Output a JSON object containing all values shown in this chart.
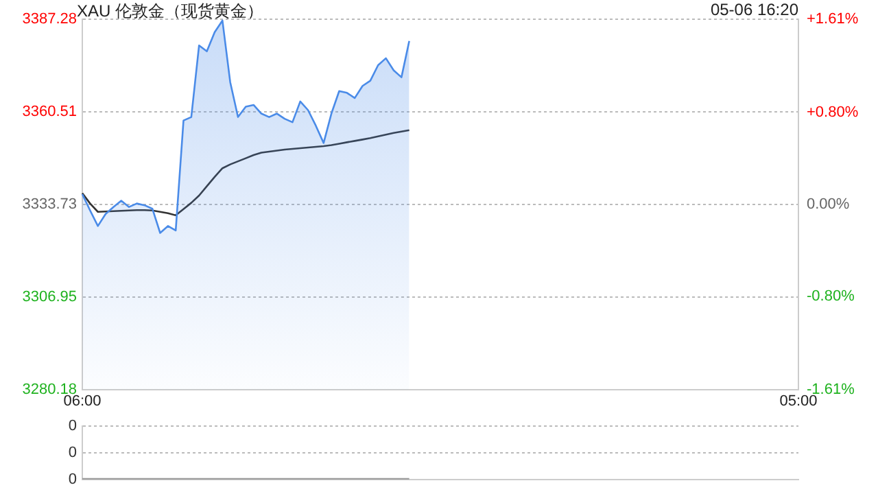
{
  "chart_data": [
    {
      "type": "area",
      "title": "XAU 伦敦金（现货黄金）",
      "annotations": [
        "05-06 16:20"
      ],
      "categories": [
        "06:00",
        null,
        null,
        null,
        null,
        null,
        null,
        null,
        null,
        null,
        null,
        null,
        null,
        null,
        null,
        null,
        null,
        null,
        null,
        null,
        null,
        null,
        null,
        null,
        null,
        null,
        null,
        null,
        null,
        null,
        null,
        null,
        null,
        null,
        null,
        null,
        null,
        null,
        null,
        null,
        null,
        null,
        null,
        null,
        null,
        null,
        null,
        null,
        null,
        null,
        null,
        null,
        null,
        null,
        null,
        null,
        null,
        null,
        null,
        null,
        null,
        null,
        null,
        null,
        null,
        null,
        null,
        null,
        null,
        null,
        null,
        null,
        null,
        null,
        null,
        null,
        null,
        null,
        null,
        null,
        null,
        null,
        null,
        null,
        null,
        null,
        null,
        null,
        null,
        null,
        null,
        null,
        "05:00"
      ],
      "ylim": [
        3280.18,
        3387.28
      ],
      "yticks": [
        3280.18,
        3306.95,
        3333.73,
        3360.51,
        3387.28
      ],
      "y2lim": [
        -1.61,
        1.61
      ],
      "y2ticks": [
        {
          "value": -1.61,
          "label": "-1.61%"
        },
        {
          "value": -0.8,
          "label": "-0.80%"
        },
        {
          "value": 0,
          "label": "0.00%"
        },
        {
          "value": 0.8,
          "label": "+0.80%"
        },
        {
          "value": 1.61,
          "label": "+1.61%"
        }
      ],
      "grid": "y",
      "legend": false,
      "marker": "none",
      "series": [
        {
          "color": "#4a8be8",
          "values": [
            3336.7,
            3332,
            3327.5,
            3331,
            3333,
            3334.8,
            3333,
            3334,
            3333.5,
            3332.5,
            3325.5,
            3327.5,
            3326.2,
            3358,
            3359,
            3379.7,
            3378,
            3383.5,
            3386.9,
            3369.1,
            3359,
            3362,
            3362.5,
            3360,
            3359,
            3360,
            3358.5,
            3357.5,
            3363.5,
            3361,
            3356.5,
            3351.5,
            3360,
            3366.5,
            3366,
            3364.5,
            3368,
            3369.5,
            3374,
            3376,
            3372.5,
            3370.5,
            3381,
            null,
            null,
            null,
            null,
            null,
            null,
            null,
            null,
            null,
            null,
            null,
            null,
            null,
            null,
            null,
            null,
            null,
            null,
            null,
            null,
            null,
            null,
            null,
            null,
            null,
            null,
            null,
            null,
            null,
            null,
            null,
            null,
            null,
            null,
            null,
            null,
            null,
            null,
            null,
            null,
            null,
            null,
            null,
            null,
            null,
            null,
            null,
            null,
            null,
            null
          ]
        },
        {
          "type": "line",
          "color": "#333333",
          "values": [
            3337,
            3334,
            3331.6,
            3331.7,
            3331.8,
            3331.9,
            3332,
            3332.1,
            3332.1,
            3332,
            3331.6,
            3331.2,
            3330.6,
            3332.4,
            3334.2,
            3336.3,
            3339,
            3341.7,
            3344.2,
            3345.3,
            3346.2,
            3347.1,
            3348,
            3348.7,
            3349,
            3349.3,
            3349.6,
            3349.8,
            3350,
            3350.2,
            3350.4,
            3350.6,
            3350.9,
            3351.3,
            3351.7,
            3352.1,
            3352.5,
            3352.9,
            3353.4,
            3353.9,
            3354.4,
            3354.8,
            3355.2,
            null,
            null,
            null,
            null,
            null,
            null,
            null,
            null,
            null,
            null,
            null,
            null,
            null,
            null,
            null,
            null,
            null,
            null,
            null,
            null,
            null,
            null,
            null,
            null,
            null,
            null,
            null,
            null,
            null,
            null,
            null,
            null,
            null,
            null,
            null,
            null,
            null,
            null,
            null,
            null,
            null,
            null,
            null,
            null,
            null,
            null,
            null,
            null,
            null,
            null
          ]
        }
      ]
    },
    {
      "type": "line",
      "categories": [
        null,
        null,
        null,
        null,
        null,
        null,
        null,
        null,
        null,
        null,
        null,
        null,
        null,
        null,
        null,
        null,
        null,
        null,
        null,
        null,
        null,
        null,
        null,
        null,
        null,
        null,
        null,
        null,
        null,
        null,
        null,
        null,
        null,
        null,
        null,
        null,
        null,
        null,
        null,
        null,
        null,
        null,
        null,
        null,
        null,
        null,
        null,
        null,
        null,
        null,
        null,
        null,
        null,
        null,
        null,
        null,
        null,
        null,
        null,
        null,
        null,
        null,
        null,
        null,
        null,
        null,
        null,
        null,
        null,
        null,
        null,
        null,
        null,
        null,
        null,
        null,
        null,
        null,
        null,
        null,
        null,
        null,
        null,
        null,
        null,
        null,
        null,
        null,
        null,
        null,
        null,
        null,
        null
      ],
      "ylim": [
        0,
        0.4
      ],
      "yticks": [
        {
          "value": 0,
          "label": "0"
        },
        {
          "value": 0.2,
          "label": "0"
        },
        {
          "value": 0.4,
          "label": "0"
        }
      ],
      "tick_labels": "y",
      "grid": "y",
      "legend": false,
      "marker": "none",
      "series": [
        {
          "color": "#999999",
          "values": [
            0,
            0,
            0,
            0,
            0,
            0,
            0,
            0,
            0,
            0,
            0,
            0,
            0,
            0,
            0,
            0,
            0,
            0,
            0,
            0,
            0,
            0,
            0,
            0,
            0,
            0,
            0,
            0,
            0,
            0,
            0,
            0,
            0,
            0,
            0,
            0,
            0,
            0,
            0,
            0,
            0,
            0,
            0,
            null,
            null,
            null,
            null,
            null,
            null,
            null,
            null,
            null,
            null,
            null,
            null,
            null,
            null,
            null,
            null,
            null,
            null,
            null,
            null,
            null,
            null,
            null,
            null,
            null,
            null,
            null,
            null,
            null,
            null,
            null,
            null,
            null,
            null,
            null,
            null,
            null,
            null,
            null,
            null,
            null,
            null,
            null,
            null,
            null,
            null,
            null,
            null,
            null,
            null
          ]
        }
      ]
    }
  ]
}
